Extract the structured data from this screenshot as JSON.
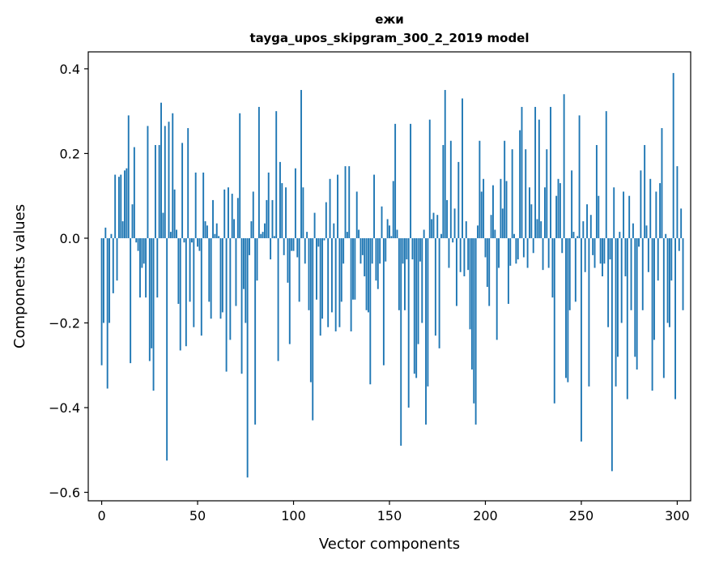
{
  "chart_data": {
    "type": "bar",
    "title": "ежи",
    "subtitle": "tayga_upos_skipgram_300_2_2019 model",
    "xlabel": "Vector components",
    "ylabel": "Components values",
    "xlim": [
      -7,
      307
    ],
    "ylim": [
      -0.62,
      0.44
    ],
    "xticks": [
      0,
      50,
      100,
      150,
      200,
      250,
      300
    ],
    "xtick_labels": [
      "0",
      "50",
      "100",
      "150",
      "200",
      "250",
      "300"
    ],
    "yticks": [
      0.4,
      0.2,
      0.0,
      -0.2,
      -0.4,
      -0.6
    ],
    "ytick_labels": [
      "0.4",
      "0.2",
      "0.0",
      "−0.2",
      "−0.4",
      "−0.6"
    ],
    "grid": false,
    "bar_color": "#1f77b4",
    "values": [
      -0.3,
      -0.2,
      0.025,
      -0.355,
      -0.2,
      0.01,
      -0.13,
      0.15,
      -0.1,
      0.145,
      0.15,
      0.04,
      0.16,
      0.165,
      0.29,
      -0.295,
      0.08,
      0.215,
      -0.01,
      -0.03,
      -0.14,
      -0.07,
      -0.06,
      -0.14,
      0.265,
      -0.29,
      -0.26,
      -0.36,
      0.22,
      -0.14,
      0.22,
      0.32,
      0.06,
      0.265,
      -0.525,
      0.275,
      0.015,
      0.295,
      0.115,
      0.02,
      -0.155,
      -0.265,
      0.225,
      -0.01,
      -0.255,
      0.26,
      -0.15,
      -0.01,
      -0.21,
      0.155,
      -0.02,
      -0.03,
      -0.23,
      0.155,
      0.04,
      0.03,
      -0.15,
      -0.19,
      0.09,
      0.01,
      0.035,
      0.005,
      -0.19,
      -0.175,
      0.115,
      -0.315,
      0.12,
      -0.24,
      0.105,
      0.045,
      -0.16,
      0.095,
      0.295,
      -0.32,
      -0.12,
      -0.2,
      -0.565,
      -0.04,
      0.04,
      0.11,
      -0.44,
      -0.1,
      0.31,
      0.01,
      0.015,
      0.035,
      0.09,
      0.155,
      -0.05,
      0.09,
      0.005,
      0.3,
      -0.29,
      0.18,
      0.13,
      -0.04,
      0.12,
      -0.105,
      -0.25,
      -0.03,
      -0.03,
      0.165,
      -0.045,
      -0.15,
      0.35,
      0.12,
      -0.06,
      0.015,
      -0.17,
      -0.34,
      -0.43,
      0.06,
      -0.145,
      -0.02,
      -0.23,
      -0.19,
      -0.005,
      0.085,
      -0.21,
      0.14,
      -0.175,
      0.035,
      -0.22,
      0.15,
      -0.21,
      -0.15,
      -0.06,
      0.17,
      0.015,
      0.17,
      -0.22,
      -0.145,
      -0.145,
      0.11,
      0.02,
      -0.06,
      -0.04,
      -0.09,
      -0.17,
      -0.175,
      -0.345,
      -0.06,
      0.15,
      -0.1,
      -0.12,
      -0.06,
      0.075,
      -0.3,
      -0.055,
      0.045,
      0.03,
      0.005,
      0.135,
      0.27,
      0.02,
      -0.17,
      -0.49,
      -0.06,
      -0.17,
      -0.05,
      -0.4,
      0.27,
      -0.05,
      -0.32,
      -0.33,
      -0.25,
      -0.055,
      -0.2,
      0.02,
      -0.44,
      -0.35,
      0.28,
      0.045,
      0.06,
      -0.23,
      0.055,
      -0.26,
      0.01,
      0.22,
      0.35,
      0.09,
      -0.07,
      0.23,
      -0.01,
      0.07,
      -0.16,
      0.18,
      -0.08,
      0.33,
      -0.09,
      0.04,
      -0.075,
      -0.215,
      -0.31,
      -0.39,
      -0.44,
      0.03,
      0.23,
      0.11,
      0.14,
      -0.045,
      -0.115,
      -0.16,
      0.055,
      0.125,
      0.02,
      -0.24,
      -0.07,
      0.14,
      0.07,
      0.23,
      0.135,
      -0.155,
      -0.065,
      0.21,
      0.01,
      -0.06,
      -0.05,
      0.255,
      0.31,
      -0.045,
      0.21,
      -0.07,
      0.12,
      0.08,
      -0.035,
      0.31,
      0.045,
      0.28,
      0.04,
      -0.075,
      0.12,
      0.21,
      -0.07,
      0.31,
      -0.14,
      -0.39,
      0.1,
      0.14,
      0.13,
      -0.035,
      0.34,
      -0.33,
      -0.34,
      -0.17,
      0.16,
      0.015,
      -0.15,
      0.005,
      0.29,
      -0.48,
      0.04,
      -0.08,
      0.08,
      -0.35,
      0.055,
      -0.04,
      -0.07,
      0.22,
      0.1,
      -0.06,
      -0.09,
      -0.06,
      0.3,
      -0.21,
      -0.05,
      -0.55,
      0.12,
      -0.35,
      -0.28,
      0.015,
      -0.2,
      0.11,
      -0.09,
      -0.38,
      0.1,
      -0.17,
      0.035,
      -0.28,
      -0.31,
      -0.02,
      0.16,
      -0.17,
      0.22,
      0.03,
      -0.08,
      0.14,
      -0.36,
      -0.24,
      0.11,
      -0.1,
      0.13,
      0.26,
      -0.33,
      0.01,
      -0.2,
      -0.21,
      -0.1,
      0.39,
      -0.38,
      0.17,
      -0.03,
      0.07,
      -0.17
    ]
  }
}
